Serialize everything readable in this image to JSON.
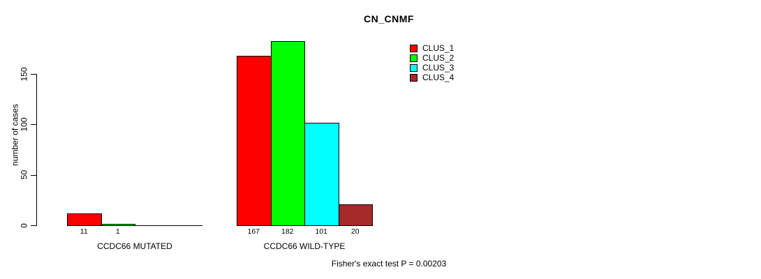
{
  "chart_data": {
    "type": "bar",
    "title": "CN_CNMF",
    "ylabel": "number of cases",
    "xlabel": "",
    "ylim": [
      0,
      150
    ],
    "yticks": [
      0,
      50,
      100,
      150
    ],
    "grid": false,
    "legend_position": "top-right",
    "categories": [
      "CCDC66 MUTATED",
      "CCDC66 WILD-TYPE"
    ],
    "series": [
      {
        "name": "CLUS_1",
        "color": "#FF0000",
        "values": [
          11,
          167
        ]
      },
      {
        "name": "CLUS_2",
        "color": "#00FF00",
        "values": [
          1,
          182
        ]
      },
      {
        "name": "CLUS_3",
        "color": "#00FFFF",
        "values": [
          0,
          101
        ]
      },
      {
        "name": "CLUS_4",
        "color": "#A52A2A",
        "values": [
          0,
          20
        ]
      }
    ],
    "bar_value_labels": [
      [
        "11",
        "1",
        "",
        ""
      ],
      [
        "167",
        "182",
        "101",
        "20"
      ]
    ],
    "annotation": "Fisher's exact test P = 0.00203"
  },
  "colors": {
    "background": "#FFFFFF",
    "axis": "#000000",
    "text": "#000000"
  }
}
